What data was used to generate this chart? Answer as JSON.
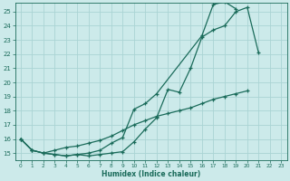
{
  "xlabel": "Humidex (Indice chaleur)",
  "bg_color": "#cceaea",
  "grid_color": "#aad4d4",
  "line_color": "#1a6b5a",
  "xlim": [
    -0.5,
    23.5
  ],
  "ylim": [
    14.5,
    25.6
  ],
  "xticks": [
    0,
    1,
    2,
    3,
    4,
    5,
    6,
    7,
    8,
    9,
    10,
    11,
    12,
    13,
    14,
    15,
    16,
    17,
    18,
    19,
    20,
    21,
    22,
    23
  ],
  "yticks": [
    15,
    16,
    17,
    18,
    19,
    20,
    21,
    22,
    23,
    24,
    25
  ],
  "line1_y": [
    16.0,
    15.2,
    15.0,
    14.9,
    14.8,
    14.9,
    14.8,
    14.9,
    15.0,
    15.1,
    15.8,
    16.7,
    17.5,
    19.5,
    19.3,
    21.0,
    23.2,
    23.7,
    24.0,
    25.0,
    25.3,
    22.1,
    null,
    null
  ],
  "line2_y": [
    16.0,
    15.2,
    15.0,
    14.9,
    14.8,
    14.9,
    15.0,
    15.2,
    15.7,
    16.1,
    18.1,
    18.5,
    19.2,
    null,
    null,
    null,
    23.3,
    25.5,
    25.7,
    25.2,
    null,
    null,
    null,
    null
  ],
  "line3_y": [
    16.0,
    15.2,
    15.0,
    15.2,
    15.4,
    15.5,
    15.7,
    15.9,
    16.2,
    16.6,
    17.0,
    17.3,
    17.6,
    17.8,
    18.0,
    18.2,
    18.5,
    18.8,
    19.0,
    19.2,
    19.4,
    null,
    null,
    null
  ]
}
